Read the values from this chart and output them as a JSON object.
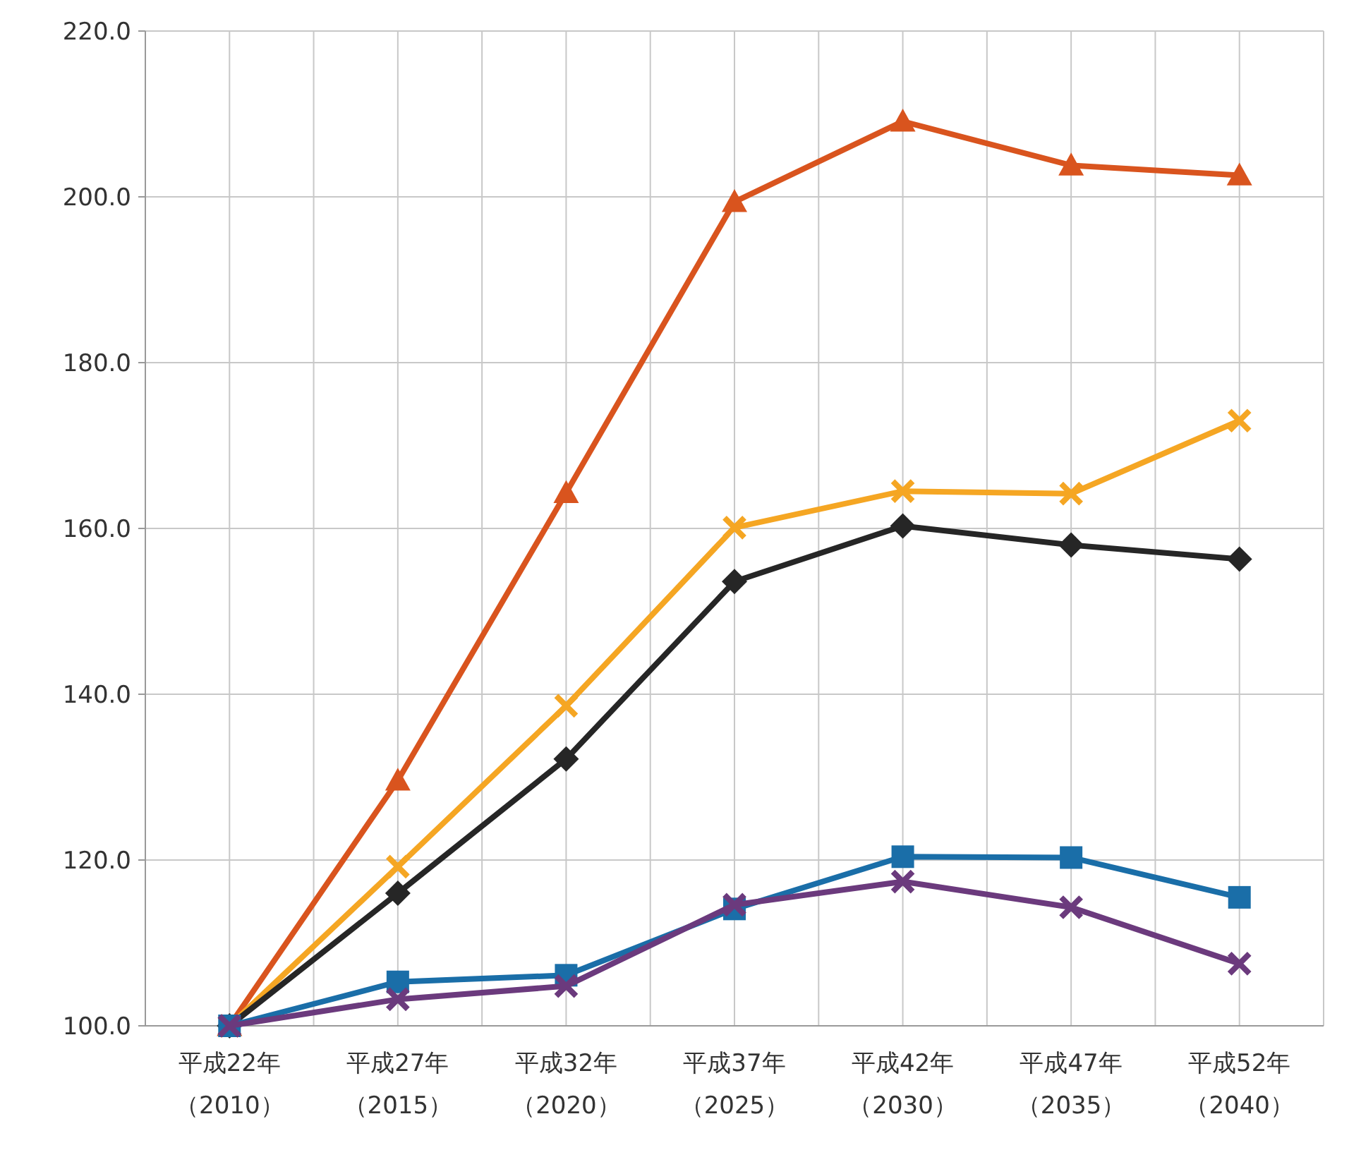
{
  "chart_data": {
    "type": "line",
    "categories": [
      "平成22年（2010）",
      "平成27年（2015）",
      "平成32年（2020）",
      "平成37年（2025）",
      "平成42年（2030）",
      "平成47年（2035）",
      "平成52年（2040）"
    ],
    "ylim": [
      100,
      220
    ],
    "yticks": [
      {
        "value": 100,
        "label": "100.0"
      },
      {
        "value": 120,
        "label": "120.0"
      },
      {
        "value": 140,
        "label": "140.0"
      },
      {
        "value": 160,
        "label": "160.0"
      },
      {
        "value": 180,
        "label": "180.0"
      },
      {
        "value": 200,
        "label": "200.0"
      },
      {
        "value": 220,
        "label": "220.0"
      }
    ],
    "grid": true,
    "line_style": "solid",
    "series": [
      {
        "color": "#d9541e",
        "marker": "triangle",
        "values": [
          100,
          129.6,
          164.3,
          199.4,
          209.1,
          203.8,
          202.6
        ]
      },
      {
        "color": "#f5a623",
        "marker": "cross",
        "values": [
          100,
          119.2,
          138.6,
          160.1,
          164.5,
          164.2,
          173.0
        ]
      },
      {
        "color": "#262626",
        "marker": "diamond",
        "values": [
          100,
          116.0,
          132.2,
          153.6,
          160.3,
          158.0,
          156.3
        ]
      },
      {
        "color": "#1a6ea8",
        "marker": "square",
        "values": [
          100,
          105.3,
          106.1,
          114.1,
          120.4,
          120.3,
          115.5
        ]
      },
      {
        "color": "#6b3a7d",
        "marker": "cross",
        "values": [
          100,
          103.2,
          104.8,
          114.6,
          117.4,
          114.3,
          107.5
        ]
      }
    ]
  }
}
